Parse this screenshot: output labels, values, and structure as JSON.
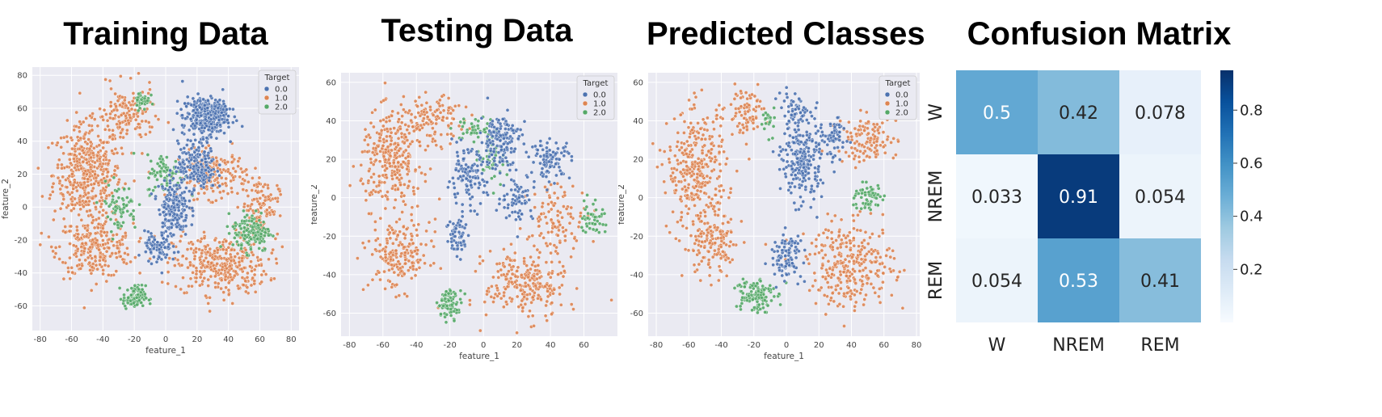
{
  "colors": {
    "class_0": "#4c72b0",
    "class_1": "#dd8452",
    "class_2": "#55a868",
    "plot_bg": "#eaeaf2",
    "grid": "#ffffff",
    "cmap": "Blues"
  },
  "chart_data": [
    {
      "type": "scatter",
      "title": "Training Data",
      "xlabel": "feature_1",
      "ylabel": "feature_2",
      "xlim": [
        -85,
        85
      ],
      "ylim": [
        -75,
        85
      ],
      "xticks": [
        -80,
        -60,
        -40,
        -20,
        0,
        20,
        40,
        60,
        80
      ],
      "yticks": [
        -60,
        -40,
        -20,
        0,
        20,
        40,
        60,
        80
      ],
      "grid": true,
      "legend": {
        "title": "Target",
        "position": "top-right",
        "labels": [
          "0.0",
          "1.0",
          "2.0"
        ]
      },
      "series": [
        {
          "name": "0.0",
          "clusters": [
            [
              25,
              55,
              12,
              10,
              300
            ],
            [
              20,
              25,
              10,
              12,
              200
            ],
            [
              5,
              0,
              8,
              15,
              200
            ],
            [
              35,
              60,
              4,
              4,
              40
            ],
            [
              -5,
              -25,
              7,
              8,
              80
            ]
          ]
        },
        {
          "name": "1.0",
          "clusters": [
            [
              -50,
              20,
              18,
              25,
              450
            ],
            [
              -45,
              -25,
              20,
              15,
              250
            ],
            [
              35,
              -35,
              25,
              15,
              350
            ],
            [
              30,
              20,
              18,
              12,
              180
            ],
            [
              -25,
              55,
              15,
              15,
              150
            ],
            [
              60,
              0,
              10,
              15,
              120
            ]
          ]
        },
        {
          "name": "2.0",
          "clusters": [
            [
              -20,
              -55,
              6,
              6,
              100
            ],
            [
              55,
              -15,
              10,
              10,
              150
            ],
            [
              0,
              20,
              10,
              10,
              80
            ],
            [
              -15,
              65,
              4,
              5,
              40
            ],
            [
              -30,
              0,
              10,
              12,
              70
            ]
          ]
        }
      ]
    },
    {
      "type": "scatter",
      "title": "Testing Data",
      "xlabel": "feature_1",
      "ylabel": "feature_2",
      "xlim": [
        -85,
        80
      ],
      "ylim": [
        -72,
        65
      ],
      "xticks": [
        -80,
        -60,
        -40,
        -20,
        0,
        20,
        40,
        60
      ],
      "yticks": [
        -60,
        -40,
        -20,
        0,
        20,
        40,
        60
      ],
      "grid": true,
      "legend": {
        "title": "Target",
        "position": "top-right",
        "labels": [
          "0.0",
          "1.0",
          "2.0"
        ]
      },
      "series": [
        {
          "name": "0.0",
          "clusters": [
            [
              10,
              30,
              10,
              12,
              150
            ],
            [
              -10,
              10,
              10,
              12,
              120
            ],
            [
              40,
              20,
              10,
              8,
              100
            ],
            [
              -15,
              -20,
              6,
              10,
              60
            ],
            [
              20,
              0,
              8,
              10,
              70
            ]
          ]
        },
        {
          "name": "1.0",
          "clusters": [
            [
              -55,
              20,
              15,
              20,
              300
            ],
            [
              -50,
              -30,
              15,
              15,
              200
            ],
            [
              25,
              -45,
              20,
              15,
              250
            ],
            [
              -30,
              40,
              15,
              10,
              120
            ],
            [
              45,
              -10,
              15,
              15,
              100
            ]
          ]
        },
        {
          "name": "2.0",
          "clusters": [
            [
              -20,
              -55,
              6,
              6,
              80
            ],
            [
              65,
              -10,
              6,
              8,
              50
            ],
            [
              5,
              20,
              8,
              10,
              40
            ],
            [
              -5,
              35,
              10,
              6,
              40
            ]
          ]
        }
      ]
    },
    {
      "type": "scatter",
      "title": "Predicted Classes",
      "xlabel": "feature_1",
      "ylabel": "feature_2",
      "xlim": [
        -85,
        82
      ],
      "ylim": [
        -72,
        65
      ],
      "xticks": [
        -80,
        -60,
        -40,
        -20,
        0,
        20,
        40,
        60,
        80
      ],
      "yticks": [
        -60,
        -40,
        -20,
        0,
        20,
        40,
        60
      ],
      "grid": true,
      "legend": {
        "title": "Target",
        "position": "top-right",
        "labels": [
          "0.0",
          "1.0",
          "2.0"
        ]
      },
      "series": [
        {
          "name": "0.0",
          "clusters": [
            [
              10,
              20,
              10,
              18,
              250
            ],
            [
              0,
              -30,
              8,
              10,
              100
            ],
            [
              30,
              30,
              6,
              10,
              60
            ],
            [
              5,
              45,
              8,
              8,
              50
            ]
          ]
        },
        {
          "name": "1.0",
          "clusters": [
            [
              -55,
              15,
              15,
              25,
              320
            ],
            [
              -45,
              -25,
              15,
              15,
              150
            ],
            [
              40,
              -35,
              22,
              18,
              300
            ],
            [
              50,
              30,
              15,
              10,
              120
            ],
            [
              -25,
              45,
              10,
              10,
              80
            ]
          ]
        },
        {
          "name": "2.0",
          "clusters": [
            [
              -20,
              -50,
              10,
              8,
              120
            ],
            [
              50,
              0,
              8,
              6,
              60
            ],
            [
              -10,
              40,
              4,
              6,
              20
            ]
          ]
        }
      ]
    },
    {
      "type": "heatmap",
      "title": "Confusion Matrix",
      "rows": [
        "W",
        "NREM",
        "REM"
      ],
      "cols": [
        "W",
        "NREM",
        "REM"
      ],
      "values": [
        [
          0.5,
          0.42,
          0.078
        ],
        [
          0.033,
          0.91,
          0.054
        ],
        [
          0.054,
          0.53,
          0.41
        ]
      ],
      "cell_labels": [
        [
          "0.5",
          "0.42",
          "0.078"
        ],
        [
          "0.033",
          "0.91",
          "0.054"
        ],
        [
          "0.054",
          "0.53",
          "0.41"
        ]
      ],
      "colorbar": {
        "min": 0.0,
        "max": 0.95,
        "ticks": [
          "0.2",
          "0.4",
          "0.6",
          "0.8"
        ]
      }
    }
  ]
}
